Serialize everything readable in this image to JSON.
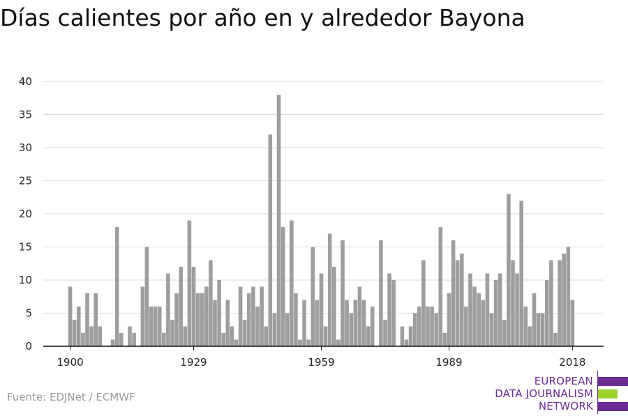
{
  "title": "Días calientes por año en y alrededor Bayona",
  "source": "Fuente: EDJNet / ECMWF",
  "logo": {
    "lines": [
      "EUROPEAN",
      "DATA JOURNALISM",
      "NETWORK"
    ],
    "colors": {
      "purple": "#6a2c91",
      "green": "#9bd12a"
    }
  },
  "colors": {
    "bar": "#9e9e9e",
    "grid": "#d9d9d9",
    "axis": "#111111"
  },
  "chart_data": {
    "type": "bar",
    "title": "Días calientes por año en y alrededor Bayona",
    "xlabel": "",
    "ylabel": "",
    "x_tick_labels": [
      "1900",
      "1929",
      "1959",
      "1989",
      "2018"
    ],
    "y_ticks": [
      0,
      5,
      10,
      15,
      20,
      25,
      30,
      35,
      40
    ],
    "ylim": [
      0,
      40
    ],
    "grid": true,
    "legend": "none",
    "x": [
      1900,
      1901,
      1902,
      1903,
      1904,
      1905,
      1906,
      1907,
      1908,
      1909,
      1910,
      1911,
      1912,
      1913,
      1914,
      1915,
      1916,
      1917,
      1918,
      1919,
      1920,
      1921,
      1922,
      1923,
      1924,
      1925,
      1926,
      1927,
      1928,
      1929,
      1930,
      1931,
      1932,
      1933,
      1934,
      1935,
      1936,
      1937,
      1938,
      1939,
      1940,
      1941,
      1942,
      1943,
      1944,
      1945,
      1946,
      1947,
      1948,
      1949,
      1950,
      1951,
      1952,
      1953,
      1954,
      1955,
      1956,
      1957,
      1958,
      1959,
      1960,
      1961,
      1962,
      1963,
      1964,
      1965,
      1966,
      1967,
      1968,
      1969,
      1970,
      1971,
      1972,
      1973,
      1974,
      1975,
      1976,
      1977,
      1978,
      1979,
      1980,
      1981,
      1982,
      1983,
      1984,
      1985,
      1986,
      1987,
      1988,
      1989,
      1990,
      1991,
      1992,
      1993,
      1994,
      1995,
      1996,
      1997,
      1998,
      1999,
      2000,
      2001,
      2002,
      2003,
      2004,
      2005,
      2006,
      2007,
      2008,
      2009,
      2010,
      2011,
      2012,
      2013,
      2014,
      2015,
      2016,
      2017,
      2018
    ],
    "values": [
      9,
      4,
      6,
      2,
      8,
      3,
      8,
      3,
      0,
      0,
      1,
      18,
      2,
      0,
      3,
      2,
      0,
      9,
      15,
      6,
      6,
      6,
      2,
      11,
      4,
      8,
      12,
      3,
      19,
      12,
      8,
      8,
      9,
      13,
      7,
      10,
      2,
      7,
      3,
      1,
      9,
      4,
      8,
      9,
      6,
      9,
      3,
      32,
      5,
      38,
      18,
      5,
      19,
      8,
      1,
      7,
      1,
      15,
      7,
      11,
      3,
      17,
      12,
      1,
      16,
      7,
      5,
      7,
      9,
      7,
      3,
      6,
      0,
      16,
      4,
      11,
      10,
      0,
      3,
      1,
      3,
      5,
      6,
      13,
      6,
      6,
      5,
      18,
      2,
      8,
      16,
      13,
      14,
      6,
      11,
      9,
      8,
      7,
      11,
      5,
      10,
      11,
      4,
      23,
      13,
      11,
      22,
      6,
      3,
      8,
      5,
      5,
      10,
      13,
      2,
      13,
      14,
      15,
      7
    ]
  }
}
